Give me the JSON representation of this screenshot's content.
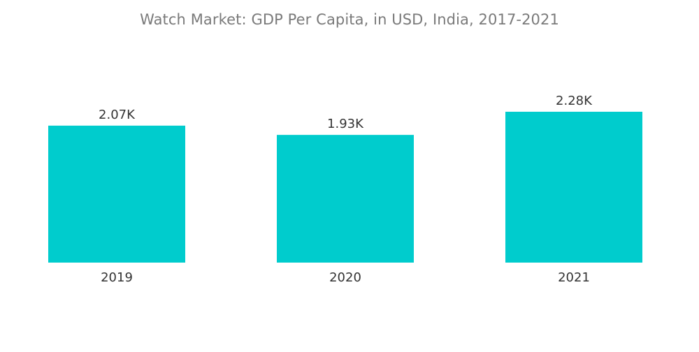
{
  "chart_data": {
    "type": "bar",
    "title": "Watch Market: GDP Per Capita, in USD, India, 2017-2021",
    "xlabel": "",
    "ylabel": "",
    "categories": [
      "2019",
      "2020",
      "2021"
    ],
    "values": [
      2070,
      1930,
      2280
    ],
    "data_labels": [
      "2.07K",
      "1.93K",
      "2.28K"
    ],
    "ylim": [
      0,
      2280
    ],
    "grid": false,
    "legend": "none",
    "bar_color": "#00cccd"
  }
}
